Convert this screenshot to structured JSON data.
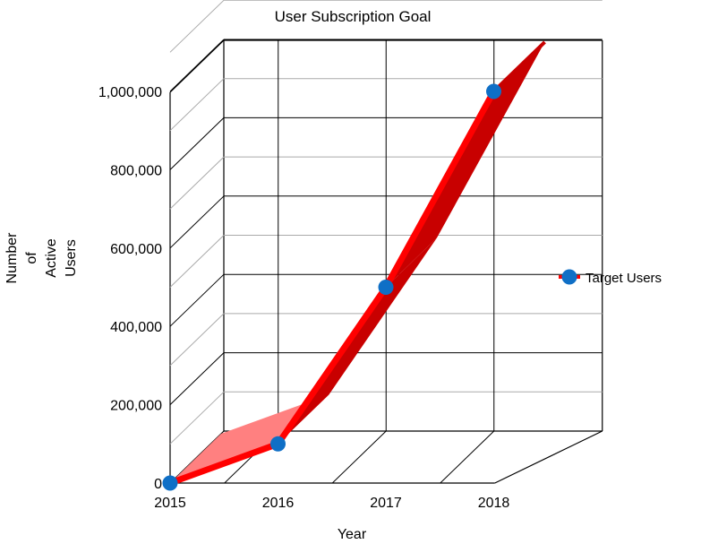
{
  "chart_data": {
    "type": "line",
    "title": "User Subscription Goal",
    "xlabel": "Year",
    "ylabel": [
      "Number",
      "of",
      "Active",
      "Users"
    ],
    "categories": [
      "2015",
      "2016",
      "2017",
      "2018"
    ],
    "yticks": [
      "0",
      "200,000",
      "400,000",
      "600,000",
      "800,000",
      "1,000,000"
    ],
    "ylim": [
      0,
      1000000
    ],
    "series": [
      {
        "name": "Target Users",
        "values": [
          0,
          100000,
          500000,
          1000000
        ]
      }
    ],
    "three_d": true,
    "grid": true,
    "legend_position": "right",
    "colors": {
      "ribbon": "#ff0000",
      "ribbon_dark": "#c80000",
      "ribbon_light": "#ff8080",
      "marker": "#0f6fc6",
      "grid": "#aaaaaa",
      "frame": "#000000"
    }
  }
}
